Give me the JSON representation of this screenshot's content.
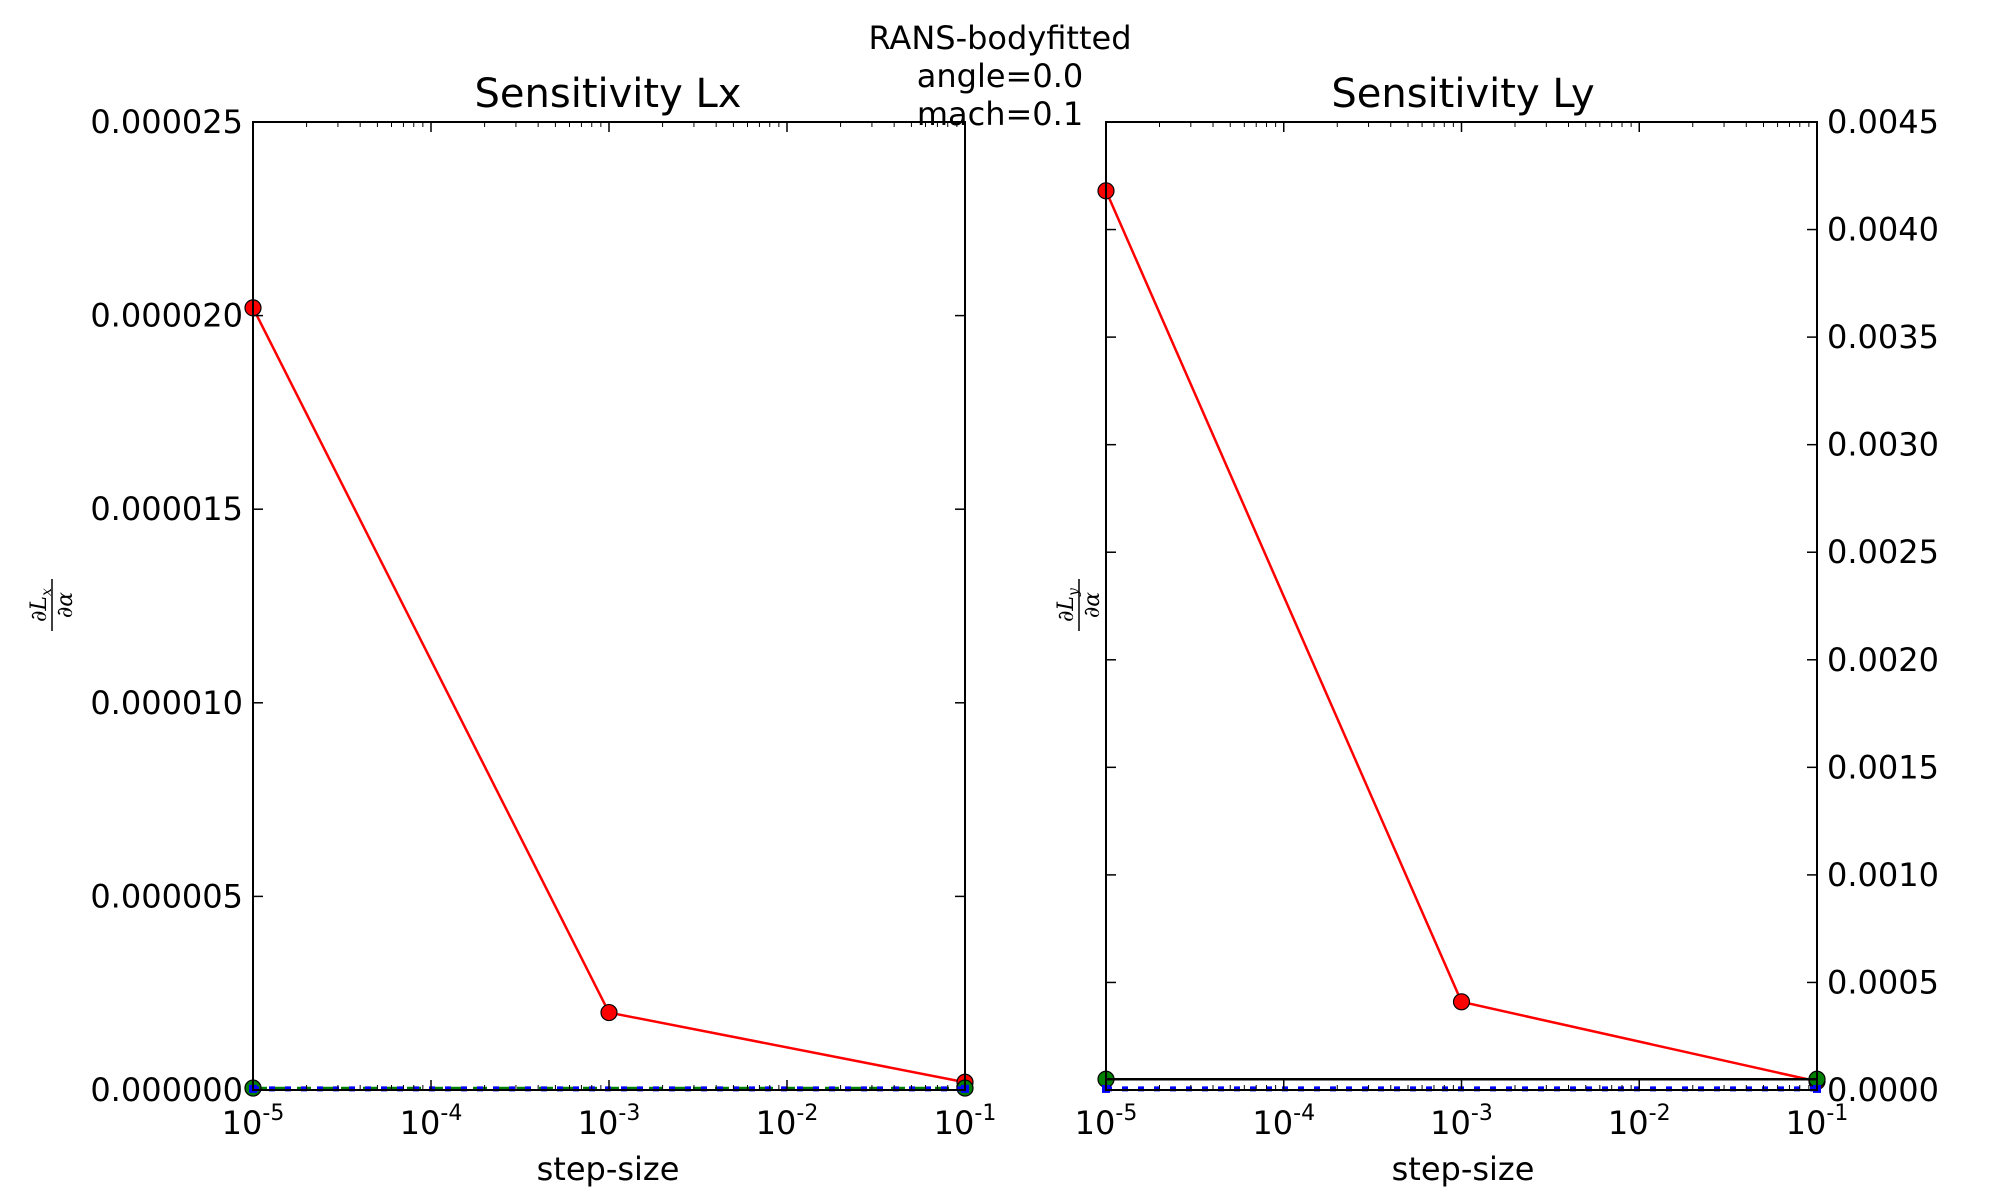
{
  "suptitle": [
    "RANS-bodyfitted",
    "angle=0.0",
    "mach=0.1"
  ],
  "colors": {
    "series_main": "#ff0000",
    "series_green": "#008000",
    "series_blue": "#0000ff",
    "series_black": "#000000"
  },
  "chart_data": [
    {
      "type": "line",
      "title": "Sensitivity Lx",
      "xlabel": "step-size",
      "ylabel": {
        "numerator": "∂L",
        "numerator_sub": "x",
        "denominator": "∂α"
      },
      "x_scale": "log",
      "xlim": [
        1e-05,
        0.1
      ],
      "ylim": [
        0,
        2.5e-05
      ],
      "y_axis_side": "left",
      "x_tick_labels": [
        {
          "base": "10",
          "exp": "-5",
          "value": 1e-05
        },
        {
          "base": "10",
          "exp": "-4",
          "value": 0.0001
        },
        {
          "base": "10",
          "exp": "-3",
          "value": 0.001
        },
        {
          "base": "10",
          "exp": "-2",
          "value": 0.01
        },
        {
          "base": "10",
          "exp": "-1",
          "value": 0.1
        }
      ],
      "y_tick_labels": [
        {
          "label": "0.000000",
          "value": 0
        },
        {
          "label": "0.000005",
          "value": 5e-06
        },
        {
          "label": "0.000010",
          "value": 1e-05
        },
        {
          "label": "0.000015",
          "value": 1.5e-05
        },
        {
          "label": "0.000020",
          "value": 2e-05
        },
        {
          "label": "0.000025",
          "value": 2.5e-05
        }
      ],
      "series": [
        {
          "x": [
            1e-05,
            0.001,
            0.1
          ],
          "y": [
            2.02e-05,
            2e-06,
            2e-07
          ],
          "color": "#ff0000",
          "style": "solid",
          "marker": "circle"
        },
        {
          "x": [
            1e-05,
            0.1
          ],
          "y": [
            5e-08,
            5e-08
          ],
          "color": "#008000",
          "style": "dashed",
          "marker": "circle"
        },
        {
          "x": [
            1e-05,
            0.1
          ],
          "y": [
            3e-08,
            3e-08
          ],
          "color": "#0000ff",
          "style": "dotted",
          "marker": "square"
        }
      ]
    },
    {
      "type": "line",
      "title": "Sensitivity Ly",
      "xlabel": "step-size",
      "ylabel": {
        "numerator": "∂L",
        "numerator_sub": "y",
        "denominator": "∂α"
      },
      "x_scale": "log",
      "xlim": [
        1e-05,
        0.1
      ],
      "ylim": [
        0,
        0.0045
      ],
      "y_axis_side": "right",
      "x_tick_labels": [
        {
          "base": "10",
          "exp": "-5",
          "value": 1e-05
        },
        {
          "base": "10",
          "exp": "-4",
          "value": 0.0001
        },
        {
          "base": "10",
          "exp": "-3",
          "value": 0.001
        },
        {
          "base": "10",
          "exp": "-2",
          "value": 0.01
        },
        {
          "base": "10",
          "exp": "-1",
          "value": 0.1
        }
      ],
      "y_tick_labels": [
        {
          "label": "0.0000",
          "value": 0
        },
        {
          "label": "0.0005",
          "value": 0.0005
        },
        {
          "label": "0.0010",
          "value": 0.001
        },
        {
          "label": "0.0015",
          "value": 0.0015
        },
        {
          "label": "0.0020",
          "value": 0.002
        },
        {
          "label": "0.0025",
          "value": 0.0025
        },
        {
          "label": "0.0030",
          "value": 0.003
        },
        {
          "label": "0.0035",
          "value": 0.0035
        },
        {
          "label": "0.0040",
          "value": 0.004
        },
        {
          "label": "0.0045",
          "value": 0.0045
        }
      ],
      "series": [
        {
          "x": [
            1e-05,
            0.001,
            0.1
          ],
          "y": [
            0.00418,
            0.00041,
            4e-05
          ],
          "color": "#ff0000",
          "style": "solid",
          "marker": "circle"
        },
        {
          "x": [
            1e-05,
            0.1
          ],
          "y": [
            5e-05,
            5e-05
          ],
          "color": "#008000",
          "style": "dashed",
          "marker": "circle"
        },
        {
          "x": [
            1e-05,
            0.1
          ],
          "y": [
            5e-05,
            5e-05
          ],
          "color": "#000000",
          "style": "solid",
          "marker": "none"
        },
        {
          "x": [
            1e-05,
            0.1
          ],
          "y": [
            5e-06,
            5e-06
          ],
          "color": "#0000ff",
          "style": "dotted",
          "marker": "square"
        }
      ]
    }
  ]
}
